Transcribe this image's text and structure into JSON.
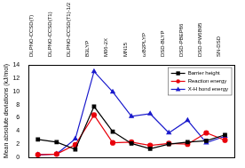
{
  "chart_data": {
    "type": "line",
    "y_label": "Mean absolute deviations (kJ/mol)",
    "categories": [
      "DLPNO-CCSD(T)",
      "DLPNO-CCSD(T1)",
      "DLPNO-CCSD(T1)-1/2",
      "B3LYP",
      "M06-2X",
      "MN15",
      "ωB2PLYP",
      "DSD-BLYP",
      "DSD-PBEP86",
      "DSD-PW6B95",
      "SN-DSD"
    ],
    "series": [
      {
        "name": "Barrier height",
        "color": "#000000",
        "marker": "square",
        "values": [
          2.7,
          2.3,
          1.2,
          7.7,
          3.9,
          2.1,
          1.3,
          2.0,
          2.3,
          2.5,
          3.4
        ]
      },
      {
        "name": "Reaction energy",
        "color": "#e8000b",
        "marker": "circle",
        "values": [
          0.4,
          0.5,
          1.9,
          6.4,
          2.2,
          2.3,
          1.8,
          2.1,
          2.0,
          3.7,
          2.6
        ]
      },
      {
        "name": "X-H bond energy",
        "color": "#1a1acc",
        "marker": "triangle",
        "values": [
          0.4,
          0.5,
          2.8,
          13.0,
          9.9,
          6.2,
          6.6,
          3.7,
          5.6,
          2.2,
          3.2
        ]
      }
    ],
    "ylim": [
      0,
      14
    ],
    "yticks": [
      0,
      2,
      4,
      6,
      8,
      10,
      12,
      14
    ],
    "grid": false,
    "legend": "upper right"
  }
}
